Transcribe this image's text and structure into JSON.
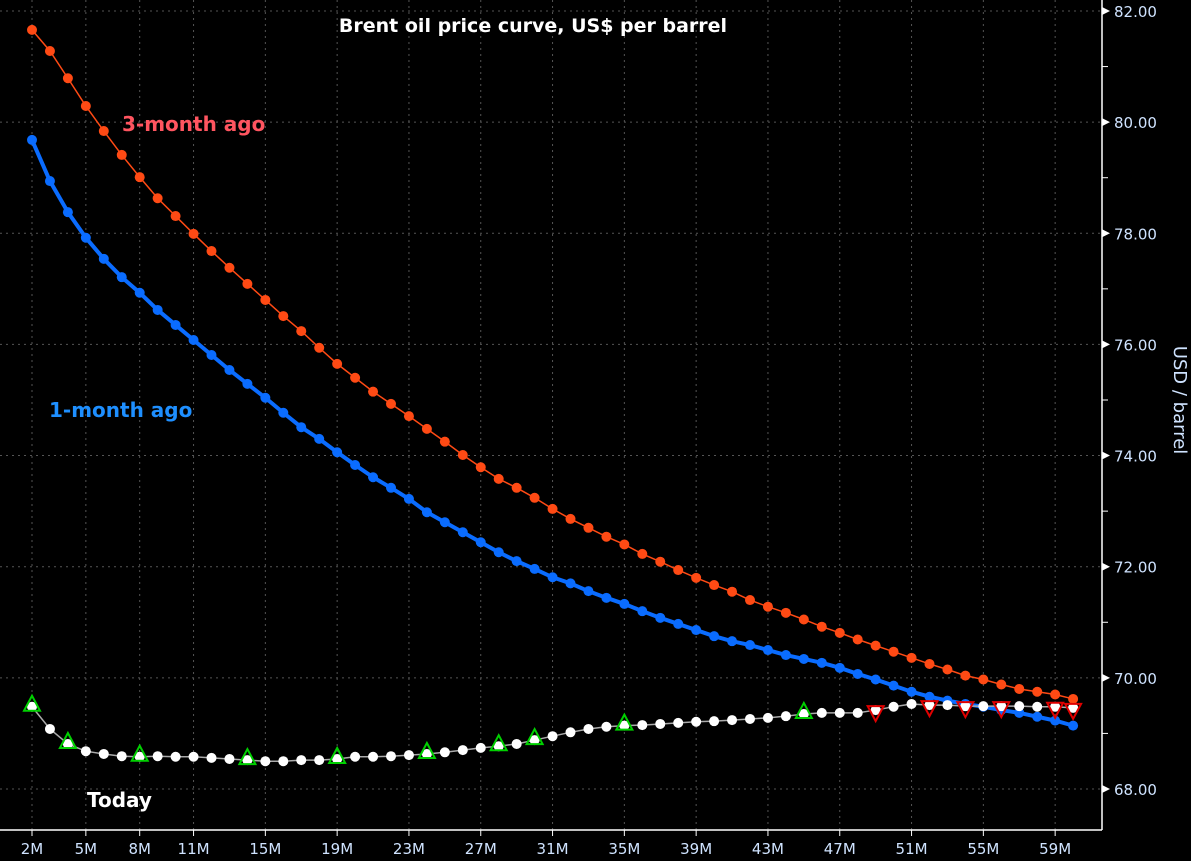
{
  "chart_data": {
    "type": "line",
    "title": "Brent oil price curve, US$ per barrel",
    "xlabel": "",
    "ylabel": "USD / barrel",
    "ylim": [
      68,
      82
    ],
    "y_ticks": [
      "68.00",
      "70.00",
      "72.00",
      "74.00",
      "76.00",
      "78.00",
      "80.00",
      "82.00"
    ],
    "x_ticks": [
      "2M",
      "5M",
      "8M",
      "11M",
      "15M",
      "19M",
      "23M",
      "27M",
      "31M",
      "35M",
      "39M",
      "43M",
      "47M",
      "51M",
      "55M",
      "59M"
    ],
    "x_months": [
      2,
      3,
      4,
      5,
      6,
      7,
      8,
      9,
      10,
      11,
      12,
      13,
      14,
      15,
      16,
      17,
      18,
      19,
      20,
      21,
      22,
      23,
      24,
      25,
      26,
      27,
      28,
      29,
      30,
      31,
      32,
      33,
      34,
      35,
      36,
      37,
      38,
      39,
      40,
      41,
      42,
      43,
      44,
      45,
      46,
      47,
      48,
      49,
      50,
      51,
      52,
      53,
      54,
      55,
      56,
      57,
      58,
      59,
      60
    ],
    "grid": true,
    "y_axis_side": "right",
    "series": [
      {
        "name": "3-month ago",
        "color": "#ff4a14",
        "label_color": "#ff5560",
        "values": [
          81.66,
          81.28,
          80.79,
          80.29,
          79.84,
          79.41,
          79.01,
          78.63,
          78.31,
          77.99,
          77.68,
          77.38,
          77.09,
          76.8,
          76.51,
          76.24,
          75.94,
          75.65,
          75.4,
          75.15,
          74.93,
          74.71,
          74.48,
          74.25,
          74.01,
          73.79,
          73.58,
          73.42,
          73.24,
          73.04,
          72.86,
          72.7,
          72.54,
          72.4,
          72.23,
          72.09,
          71.94,
          71.8,
          71.67,
          71.55,
          71.4,
          71.28,
          71.17,
          71.05,
          70.92,
          70.81,
          70.69,
          70.58,
          70.47,
          70.36,
          70.25,
          70.15,
          70.04,
          69.97,
          69.88,
          69.8,
          69.75,
          69.7,
          69.62
        ]
      },
      {
        "name": "1-month ago",
        "color": "#0a6cff",
        "label_color": "#1e8fff",
        "values": [
          79.68,
          78.94,
          78.38,
          77.92,
          77.54,
          77.21,
          76.93,
          76.62,
          76.35,
          76.08,
          75.81,
          75.54,
          75.29,
          75.04,
          74.77,
          74.51,
          74.3,
          74.06,
          73.83,
          73.61,
          73.42,
          73.22,
          72.98,
          72.8,
          72.62,
          72.44,
          72.26,
          72.1,
          71.96,
          71.81,
          71.7,
          71.56,
          71.44,
          71.33,
          71.2,
          71.08,
          70.97,
          70.86,
          70.75,
          70.66,
          70.59,
          70.5,
          70.41,
          70.34,
          70.27,
          70.18,
          70.07,
          69.97,
          69.86,
          69.75,
          69.66,
          69.59,
          69.53,
          69.48,
          69.42,
          69.37,
          69.3,
          69.23,
          69.14
        ]
      },
      {
        "name": "Today",
        "color": "#ffffff",
        "label_color": "#ffffff",
        "values": [
          69.48,
          69.08,
          68.81,
          68.68,
          68.63,
          68.59,
          68.58,
          68.59,
          68.58,
          68.58,
          68.56,
          68.54,
          68.52,
          68.5,
          68.5,
          68.52,
          68.52,
          68.54,
          68.58,
          68.58,
          68.59,
          68.61,
          68.63,
          68.66,
          68.7,
          68.74,
          68.77,
          68.81,
          68.88,
          68.95,
          69.02,
          69.08,
          69.12,
          69.14,
          69.15,
          69.17,
          69.19,
          69.21,
          69.22,
          69.24,
          69.26,
          69.28,
          69.31,
          69.35,
          69.37,
          69.37,
          69.37,
          69.42,
          69.48,
          69.53,
          69.51,
          69.51,
          69.49,
          69.49,
          69.49,
          69.49,
          69.48,
          69.48,
          69.46
        ],
        "up_markers_months": [
          2,
          4,
          8,
          14,
          19,
          24,
          28,
          30,
          35,
          45
        ],
        "down_markers_months": [
          49,
          52,
          54,
          56,
          59,
          60
        ],
        "up_marker_color": "#00d000",
        "down_marker_color": "#e00000"
      }
    ]
  }
}
